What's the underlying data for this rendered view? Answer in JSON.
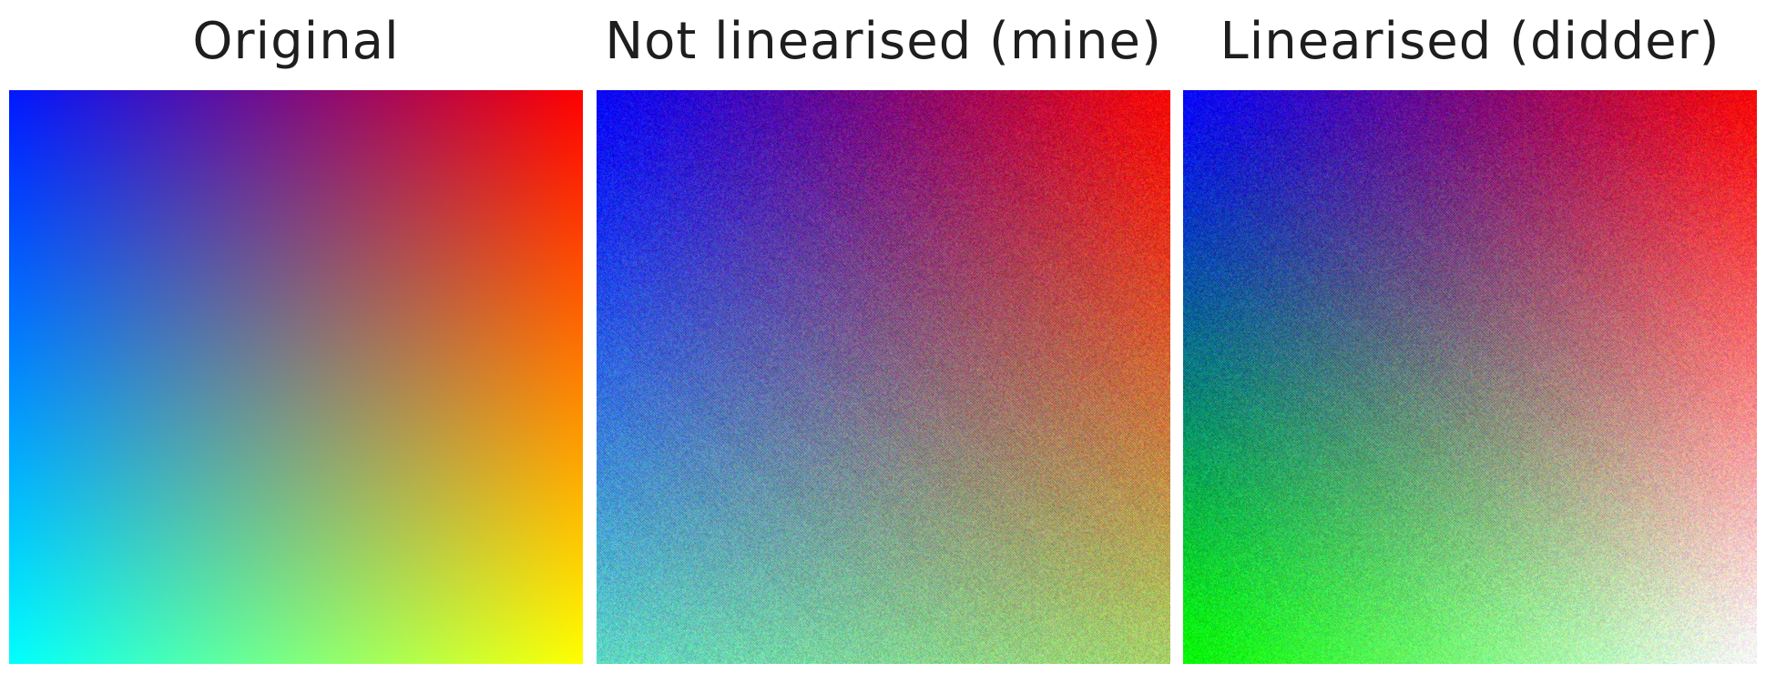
{
  "panels": [
    {
      "title": "Original",
      "corners": {
        "top_left": "#0018ff",
        "top_right": "#ff0000",
        "bottom_left": "#00ffff",
        "bottom_right": "#ffff00"
      }
    },
    {
      "title": "Not linearised (mine)",
      "corners": {
        "top_left": "#0000ff",
        "top_right": "#ff0000",
        "bottom_left": "#5fd9c6",
        "bottom_right": "#a8d56a"
      }
    },
    {
      "title": "Linearised (didder)",
      "corners": {
        "top_left": "#0000ff",
        "top_right": "#ff0000",
        "bottom_left": "#00ff00",
        "bottom_right": "#ffffff"
      }
    }
  ]
}
